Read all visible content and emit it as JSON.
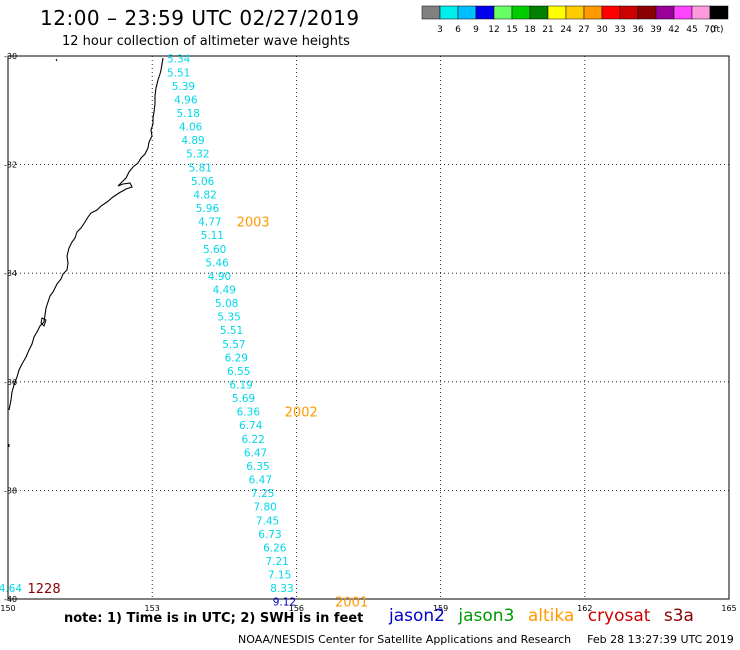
{
  "title": "12:00 – 23:59 UTC 02/27/2019",
  "subtitle": "12 hour collection of altimeter wave heights",
  "colorbar": {
    "colors": [
      "#808080",
      "#00eeee",
      "#00bfff",
      "#0000ee",
      "#66ff66",
      "#00cc00",
      "#008000",
      "#ffff00",
      "#ffcc00",
      "#ff9900",
      "#ff0000",
      "#cc0000",
      "#8b0000",
      "#990099",
      "#ff44ff",
      "#ff99dd",
      "#000000"
    ],
    "labels": [
      "3",
      "6",
      "9",
      "12",
      "15",
      "18",
      "21",
      "24",
      "27",
      "30",
      "33",
      "36",
      "39",
      "42",
      "45",
      "70"
    ],
    "unit": "(ft)"
  },
  "axes": {
    "x_ticks": [
      "150",
      "153",
      "156",
      "159",
      "162",
      "165"
    ],
    "y_ticks": [
      "-30",
      "-32",
      "-34",
      "-36",
      "-38",
      "-40"
    ]
  },
  "wave_color": "#00d8e8",
  "track_color": "#ff9900",
  "coast_color": "#000000",
  "measurements": [
    {
      "lon": 153.55,
      "lat": -30.05,
      "swh": "5.34"
    },
    {
      "lon": 153.55,
      "lat": -30.3,
      "swh": "5.51"
    },
    {
      "lon": 153.65,
      "lat": -30.55,
      "swh": "5.39"
    },
    {
      "lon": 153.7,
      "lat": -30.8,
      "swh": "4.96"
    },
    {
      "lon": 153.75,
      "lat": -31.05,
      "swh": "5.18"
    },
    {
      "lon": 153.8,
      "lat": -31.3,
      "swh": "4.06"
    },
    {
      "lon": 153.85,
      "lat": -31.55,
      "swh": "4.89"
    },
    {
      "lon": 153.95,
      "lat": -31.8,
      "swh": "5.32"
    },
    {
      "lon": 154.0,
      "lat": -32.05,
      "swh": "5.81"
    },
    {
      "lon": 154.05,
      "lat": -32.3,
      "swh": "5.06"
    },
    {
      "lon": 154.1,
      "lat": -32.55,
      "swh": "4.82"
    },
    {
      "lon": 154.15,
      "lat": -32.8,
      "swh": "5.96"
    },
    {
      "lon": 154.2,
      "lat": -33.05,
      "swh": "4.77"
    },
    {
      "lon": 154.25,
      "lat": -33.3,
      "swh": "5.11"
    },
    {
      "lon": 154.3,
      "lat": -33.55,
      "swh": "5.60"
    },
    {
      "lon": 154.35,
      "lat": -33.8,
      "swh": "5.46"
    },
    {
      "lon": 154.4,
      "lat": -34.05,
      "swh": "4.90"
    },
    {
      "lon": 154.5,
      "lat": -34.3,
      "swh": "4.49"
    },
    {
      "lon": 154.55,
      "lat": -34.55,
      "swh": "5.08"
    },
    {
      "lon": 154.6,
      "lat": -34.8,
      "swh": "5.35"
    },
    {
      "lon": 154.65,
      "lat": -35.05,
      "swh": "5.51"
    },
    {
      "lon": 154.7,
      "lat": -35.3,
      "swh": "5.57"
    },
    {
      "lon": 154.75,
      "lat": -35.55,
      "swh": "6.29"
    },
    {
      "lon": 154.8,
      "lat": -35.8,
      "swh": "6.55"
    },
    {
      "lon": 154.85,
      "lat": -36.05,
      "swh": "6.19"
    },
    {
      "lon": 154.9,
      "lat": -36.3,
      "swh": "5.69"
    },
    {
      "lon": 155.0,
      "lat": -36.55,
      "swh": "6.36"
    },
    {
      "lon": 155.05,
      "lat": -36.8,
      "swh": "6.74"
    },
    {
      "lon": 155.1,
      "lat": -37.05,
      "swh": "6.22"
    },
    {
      "lon": 155.15,
      "lat": -37.3,
      "swh": "6.47"
    },
    {
      "lon": 155.2,
      "lat": -37.55,
      "swh": "6.35"
    },
    {
      "lon": 155.25,
      "lat": -37.8,
      "swh": "6.47"
    },
    {
      "lon": 155.3,
      "lat": -38.05,
      "swh": "7.25"
    },
    {
      "lon": 155.35,
      "lat": -38.3,
      "swh": "7.80"
    },
    {
      "lon": 155.4,
      "lat": -38.55,
      "swh": "7.45"
    },
    {
      "lon": 155.45,
      "lat": -38.8,
      "swh": "6.73"
    },
    {
      "lon": 155.55,
      "lat": -39.05,
      "swh": "6.26"
    },
    {
      "lon": 155.6,
      "lat": -39.3,
      "swh": "7.21"
    },
    {
      "lon": 155.65,
      "lat": -39.55,
      "swh": "7.15"
    },
    {
      "lon": 155.7,
      "lat": -39.8,
      "swh": "8.33"
    },
    {
      "lon": 155.75,
      "lat": -40.05,
      "swh": "9.12",
      "color": "#0000cc"
    },
    {
      "lon": 150.05,
      "lat": -39.8,
      "swh": "4.64"
    }
  ],
  "time_labels": [
    {
      "lon": 155.1,
      "lat": -33.05,
      "text": "2003",
      "color": "#ff9900"
    },
    {
      "lon": 156.1,
      "lat": -36.55,
      "text": "2002",
      "color": "#ff9900"
    },
    {
      "lon": 157.15,
      "lat": -40.05,
      "text": "2001",
      "color": "#ff9900"
    },
    {
      "lon": 150.75,
      "lat": -39.8,
      "text": "1228",
      "color": "#8b0000"
    }
  ],
  "note": "note: 1) Time is in UTC; 2) SWH is in feet",
  "legend": [
    {
      "name": "jason2",
      "color": "#0000cc"
    },
    {
      "name": "jason3",
      "color": "#009900"
    },
    {
      "name": "altika",
      "color": "#ff9900"
    },
    {
      "name": "cryosat",
      "color": "#cc0000"
    },
    {
      "name": "s3a",
      "color": "#8b0000"
    }
  ],
  "credit": "NOAA/NESDIS Center for Satellite Applications and Research",
  "timestamp": "Feb 28 13:27:39 UTC 2019"
}
